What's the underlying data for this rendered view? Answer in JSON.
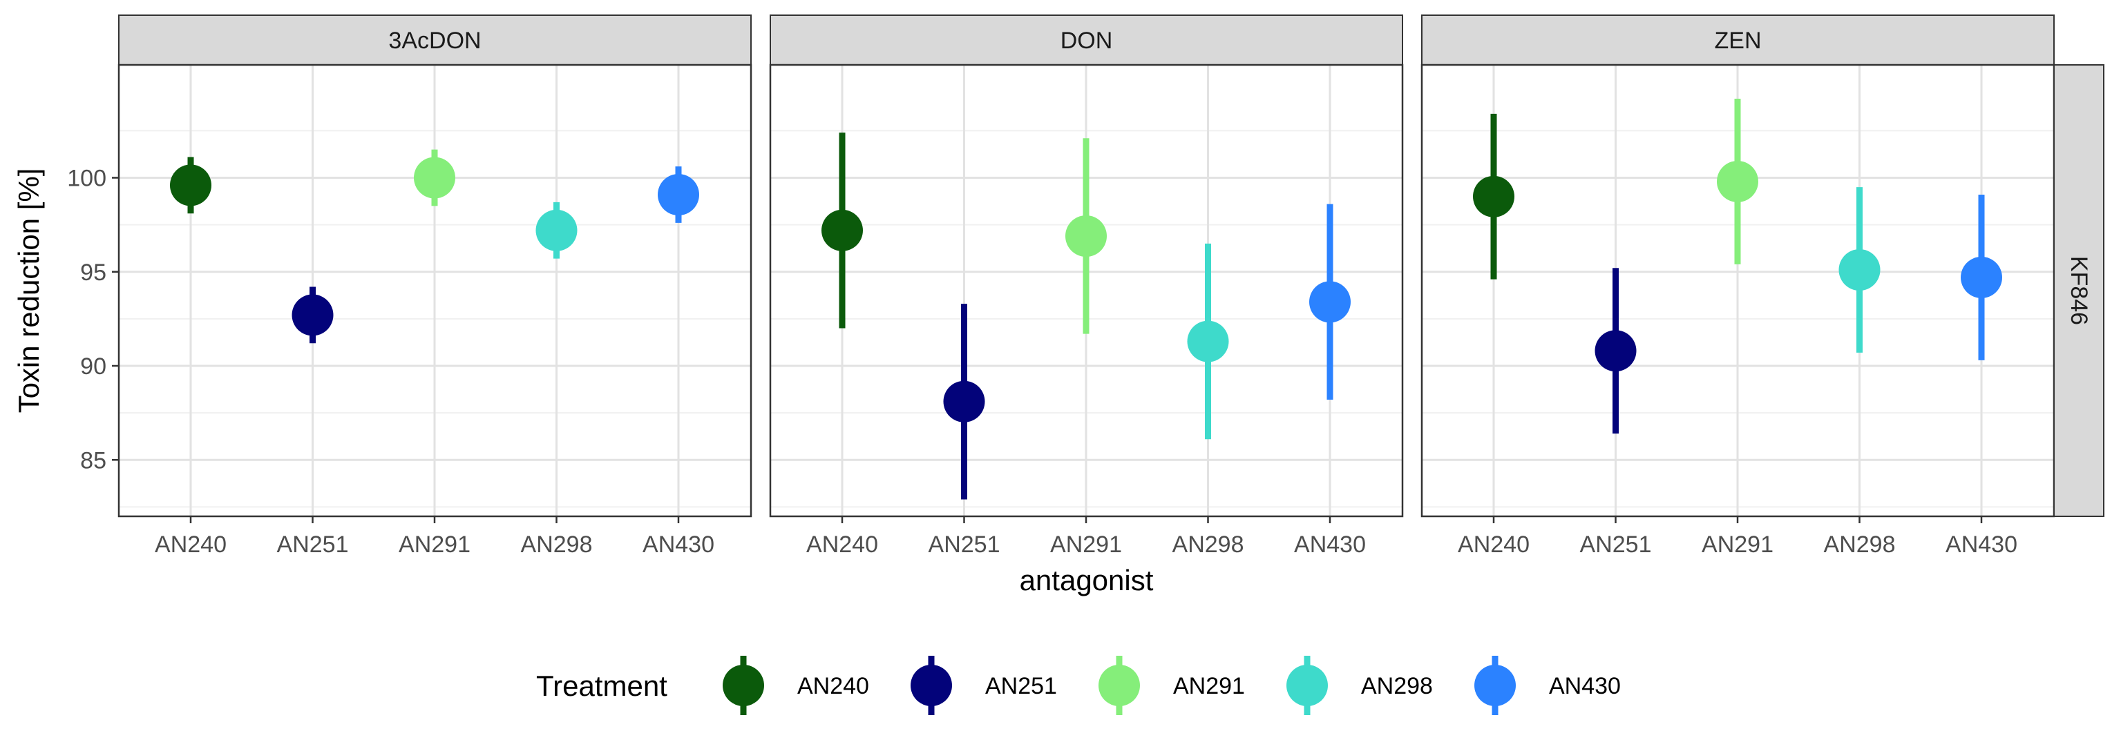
{
  "chart_data": {
    "type": "scatter",
    "subtype": "point-range faceted",
    "xlabel": "antagonist",
    "ylabel": "Toxin reduction [%]",
    "categories": [
      "AN240",
      "AN251",
      "AN291",
      "AN298",
      "AN430"
    ],
    "ylim": [
      82,
      106
    ],
    "yticks": [
      85,
      90,
      95,
      100
    ],
    "grid": true,
    "row_strip": "KF846",
    "legend": {
      "title": "Treatment",
      "placement": "bottom",
      "items": [
        "AN240",
        "AN251",
        "AN291",
        "AN298",
        "AN430"
      ]
    },
    "colors": {
      "AN240": "#0b5a0b",
      "AN251": "#03037a",
      "AN291": "#85ee7a",
      "AN298": "#3edacb",
      "AN430": "#2b82ff"
    },
    "panels": [
      {
        "name": "3AcDON",
        "points": [
          {
            "x": "AN240",
            "y": 99.6,
            "low": 98.1,
            "high": 101.1
          },
          {
            "x": "AN251",
            "y": 92.7,
            "low": 91.2,
            "high": 94.2
          },
          {
            "x": "AN291",
            "y": 100.0,
            "low": 98.5,
            "high": 101.5
          },
          {
            "x": "AN298",
            "y": 97.2,
            "low": 95.7,
            "high": 98.7
          },
          {
            "x": "AN430",
            "y": 99.1,
            "low": 97.6,
            "high": 100.6
          }
        ]
      },
      {
        "name": "DON",
        "points": [
          {
            "x": "AN240",
            "y": 97.2,
            "low": 92.0,
            "high": 102.4
          },
          {
            "x": "AN251",
            "y": 88.1,
            "low": 82.9,
            "high": 93.3
          },
          {
            "x": "AN291",
            "y": 96.9,
            "low": 91.7,
            "high": 102.1
          },
          {
            "x": "AN298",
            "y": 91.3,
            "low": 86.1,
            "high": 96.5
          },
          {
            "x": "AN430",
            "y": 93.4,
            "low": 88.2,
            "high": 98.6
          }
        ]
      },
      {
        "name": "ZEN",
        "points": [
          {
            "x": "AN240",
            "y": 99.0,
            "low": 94.6,
            "high": 103.4
          },
          {
            "x": "AN251",
            "y": 90.8,
            "low": 86.4,
            "high": 95.2
          },
          {
            "x": "AN291",
            "y": 99.8,
            "low": 95.4,
            "high": 104.2
          },
          {
            "x": "AN298",
            "y": 95.1,
            "low": 90.7,
            "high": 99.5
          },
          {
            "x": "AN430",
            "y": 94.7,
            "low": 90.3,
            "high": 99.1
          }
        ]
      }
    ]
  }
}
